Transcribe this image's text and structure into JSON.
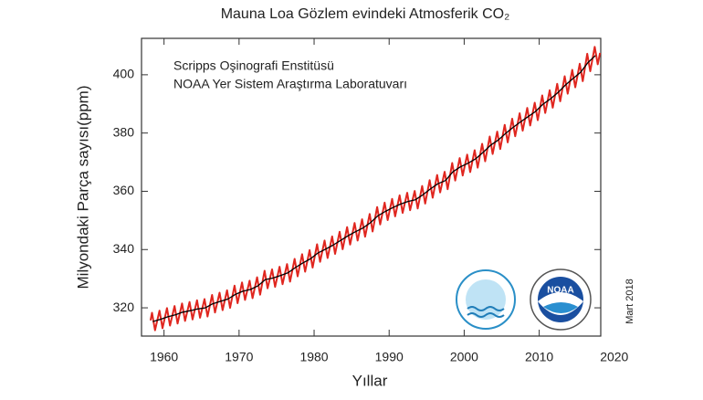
{
  "chart_data": {
    "type": "line",
    "title": "Mauna Loa Gözlem evindeki Atmosferik CO₂",
    "annotations": [
      "Scripps Oşinografi Enstitüsü",
      "NOAA Yer Sistem Araştırma Laboratuvarı"
    ],
    "date_note": "Mart 2018",
    "x_label": "Yıllar",
    "y_label": "Milyondaki Parça sayısı(ppm)",
    "xlim": [
      1957,
      2018.2
    ],
    "ylim": [
      310.3,
      412.5
    ],
    "xticks": [
      1960,
      1970,
      1980,
      1990,
      2000,
      2010,
      2020
    ],
    "yticks": [
      320,
      340,
      360,
      380,
      400
    ],
    "grid": false,
    "series": [
      {
        "color": "#e0261f",
        "x": [
          1958.2,
          1958.4,
          1958.8,
          1959.4,
          1959.8,
          1960.4,
          1960.8,
          1961.4,
          1961.8,
          1962.4,
          1962.8,
          1963.4,
          1963.8,
          1964.4,
          1964.8,
          1965.4,
          1965.8,
          1966.4,
          1966.8,
          1967.4,
          1967.8,
          1968.4,
          1968.8,
          1969.4,
          1969.8,
          1970.4,
          1970.8,
          1971.4,
          1971.8,
          1972.4,
          1972.8,
          1973.4,
          1973.8,
          1974.4,
          1974.8,
          1975.4,
          1975.8,
          1976.4,
          1976.8,
          1977.4,
          1977.8,
          1978.4,
          1978.8,
          1979.4,
          1979.8,
          1980.4,
          1980.8,
          1981.4,
          1981.8,
          1982.4,
          1982.8,
          1983.4,
          1983.8,
          1984.4,
          1984.8,
          1985.4,
          1985.8,
          1986.4,
          1986.8,
          1987.4,
          1987.8,
          1988.4,
          1988.8,
          1989.4,
          1989.8,
          1990.4,
          1990.8,
          1991.4,
          1991.8,
          1992.4,
          1992.8,
          1993.4,
          1993.8,
          1994.4,
          1994.8,
          1995.4,
          1995.8,
          1996.4,
          1996.8,
          1997.4,
          1997.8,
          1998.4,
          1998.8,
          1999.4,
          1999.8,
          2000.4,
          2000.8,
          2001.4,
          2001.8,
          2002.4,
          2002.8,
          2003.4,
          2003.8,
          2004.4,
          2004.8,
          2005.4,
          2005.8,
          2006.4,
          2006.8,
          2007.4,
          2007.8,
          2008.4,
          2008.8,
          2009.4,
          2009.8,
          2010.4,
          2010.8,
          2011.4,
          2011.8,
          2012.4,
          2012.8,
          2013.4,
          2013.8,
          2014.4,
          2014.8,
          2015.4,
          2015.8,
          2016.4,
          2016.8,
          2017.4,
          2017.8,
          2018.1
        ],
        "values": [
          315.7,
          318.3,
          312.3,
          319.0,
          313.0,
          319.9,
          313.9,
          320.6,
          314.6,
          321.5,
          315.5,
          322.0,
          316.0,
          322.6,
          316.6,
          323.0,
          317.0,
          324.4,
          318.4,
          325.2,
          319.2,
          326.0,
          320.0,
          327.6,
          321.6,
          328.7,
          322.7,
          329.3,
          323.3,
          330.5,
          324.5,
          332.7,
          326.7,
          333.2,
          327.2,
          334.1,
          328.1,
          335.0,
          329.0,
          336.8,
          330.8,
          338.4,
          332.4,
          339.8,
          333.8,
          341.8,
          335.8,
          343.1,
          337.1,
          344.5,
          338.5,
          346.1,
          340.1,
          347.7,
          341.7,
          349.1,
          343.1,
          350.4,
          344.4,
          352.2,
          346.2,
          354.6,
          348.6,
          356.1,
          350.1,
          357.4,
          351.4,
          358.6,
          352.6,
          359.5,
          353.5,
          360.1,
          354.1,
          361.8,
          355.8,
          363.8,
          357.8,
          365.6,
          359.6,
          366.7,
          360.7,
          369.7,
          363.7,
          371.4,
          365.4,
          372.6,
          366.6,
          374.1,
          368.1,
          376.3,
          370.3,
          378.8,
          372.8,
          380.5,
          374.5,
          382.8,
          376.8,
          384.9,
          378.9,
          386.8,
          380.8,
          388.6,
          382.6,
          390.4,
          384.4,
          392.9,
          386.9,
          394.7,
          388.7,
          396.9,
          390.9,
          399.5,
          393.5,
          401.7,
          395.7,
          403.8,
          397.8,
          407.2,
          401.2,
          409.6,
          403.6,
          407.5
        ]
      },
      {
        "color": "#000000",
        "x": [
          1958.5,
          1959.5,
          1960.5,
          1961.5,
          1962.5,
          1963.5,
          1964.5,
          1965.5,
          1966.5,
          1967.5,
          1968.5,
          1969.5,
          1970.5,
          1971.5,
          1972.5,
          1973.5,
          1974.5,
          1975.5,
          1976.5,
          1977.5,
          1978.5,
          1979.5,
          1980.5,
          1981.5,
          1982.5,
          1983.5,
          1984.5,
          1985.5,
          1986.5,
          1987.5,
          1988.5,
          1989.5,
          1990.5,
          1991.5,
          1992.5,
          1993.5,
          1994.5,
          1995.5,
          1996.5,
          1997.5,
          1998.5,
          1999.5,
          2000.5,
          2001.5,
          2002.5,
          2003.5,
          2004.5,
          2005.5,
          2006.5,
          2007.5,
          2008.5,
          2009.5,
          2010.5,
          2011.5,
          2012.5,
          2013.5,
          2014.5,
          2015.5,
          2016.5,
          2017.5
        ],
        "values": [
          315.3,
          316.0,
          316.9,
          317.6,
          318.5,
          319.0,
          319.6,
          320.0,
          321.4,
          322.2,
          323.0,
          324.6,
          325.7,
          326.3,
          327.5,
          329.7,
          330.2,
          331.1,
          332.0,
          333.8,
          335.4,
          336.8,
          338.8,
          340.1,
          341.5,
          343.1,
          344.7,
          346.1,
          347.4,
          349.2,
          351.6,
          353.1,
          354.4,
          355.6,
          356.5,
          357.1,
          358.8,
          360.8,
          362.6,
          363.7,
          366.7,
          368.4,
          369.6,
          371.1,
          373.3,
          375.8,
          377.5,
          379.8,
          381.9,
          383.8,
          385.6,
          387.4,
          389.9,
          391.7,
          393.9,
          396.5,
          398.7,
          400.8,
          404.2,
          406.6
        ]
      }
    ]
  }
}
